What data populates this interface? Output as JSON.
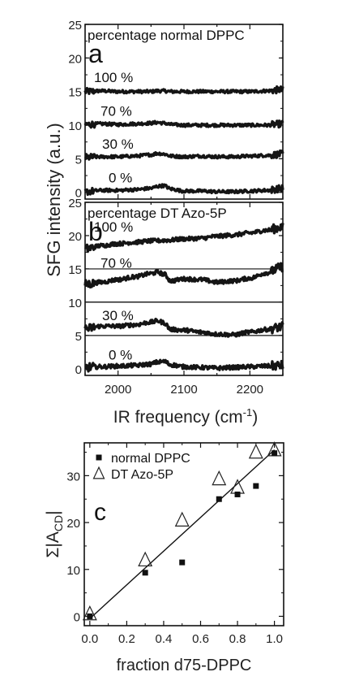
{
  "chart_data": [
    {
      "type": "line",
      "panel_label": "a",
      "legend_title": "percentage normal DPPC",
      "xlim": [
        1950,
        2250
      ],
      "ylim": [
        -1,
        25
      ],
      "yticks": [
        0,
        5,
        10,
        15,
        20,
        25
      ],
      "yticklabels": [
        "0",
        "5",
        "10",
        "15",
        "20",
        "25"
      ],
      "series": [
        {
          "name": "100 %",
          "baseline": 15,
          "x": [
            1950,
            1975,
            2000,
            2025,
            2050,
            2060,
            2070,
            2080,
            2100,
            2125,
            2150,
            2175,
            2200,
            2225,
            2250
          ],
          "y": [
            15,
            15.1,
            15,
            15,
            15,
            15.1,
            15.1,
            15,
            15,
            15,
            15,
            15,
            15,
            15.1,
            15.3
          ]
        },
        {
          "name": "70 %",
          "baseline": 10,
          "x": [
            1950,
            1975,
            2000,
            2025,
            2050,
            2060,
            2070,
            2080,
            2100,
            2125,
            2150,
            2175,
            2200,
            2225,
            2250
          ],
          "y": [
            10.1,
            10.2,
            10.1,
            10.2,
            10.3,
            10.4,
            10.3,
            10.1,
            10,
            10,
            10,
            10,
            10,
            10,
            10.2
          ]
        },
        {
          "name": "30 %",
          "baseline": 5,
          "x": [
            1950,
            1975,
            2000,
            2025,
            2050,
            2060,
            2070,
            2080,
            2100,
            2125,
            2150,
            2175,
            2200,
            2225,
            2250
          ],
          "y": [
            5.2,
            5.3,
            5.3,
            5.4,
            5.6,
            5.8,
            5.7,
            5.4,
            5.3,
            5.4,
            5.3,
            5.3,
            5.4,
            5.5,
            5.7
          ]
        },
        {
          "name": "0 %",
          "baseline": 0,
          "x": [
            1950,
            1975,
            2000,
            2025,
            2050,
            2060,
            2070,
            2080,
            2100,
            2125,
            2150,
            2175,
            2200,
            2225,
            2250
          ],
          "y": [
            0.1,
            0.3,
            0.3,
            0.4,
            0.6,
            0.9,
            1.0,
            0.5,
            0.2,
            0.2,
            0.1,
            0.1,
            0.2,
            0.3,
            0.6
          ]
        }
      ]
    },
    {
      "type": "line",
      "panel_label": "b",
      "legend_title": "percentage DT Azo-5P",
      "xlim": [
        1950,
        2250
      ],
      "ylim": [
        -1,
        25
      ],
      "xticks": [
        2000,
        2100,
        2200
      ],
      "xticklabels": [
        "2000",
        "2100",
        "2200"
      ],
      "yticks": [
        0,
        5,
        10,
        15,
        20,
        25
      ],
      "yticklabels": [
        "0",
        "5",
        "10",
        "15",
        "20",
        "25"
      ],
      "xlabel": "IR frequency (cm",
      "xlabel_sup": "-1",
      "xlabel_end": ")",
      "shared_ylabel": "SFG intensity (a.u.)",
      "series": [
        {
          "name": "100 %",
          "baseline": 15,
          "x": [
            1950,
            1975,
            2000,
            2025,
            2050,
            2075,
            2100,
            2125,
            2150,
            2175,
            2200,
            2225,
            2250
          ],
          "y": [
            18.0,
            18.5,
            18.8,
            19.0,
            19.2,
            19.3,
            19.5,
            19.6,
            19.9,
            20.1,
            20.4,
            20.8,
            21.3
          ]
        },
        {
          "name": "70 %",
          "baseline": 10,
          "x": [
            1950,
            1975,
            2000,
            2025,
            2050,
            2060,
            2070,
            2080,
            2100,
            2125,
            2150,
            2175,
            2200,
            2225,
            2250
          ],
          "y": [
            12.7,
            13.0,
            13.4,
            13.8,
            14.3,
            14.5,
            14.2,
            13.2,
            13.5,
            13.4,
            13.0,
            13.2,
            13.6,
            14.4,
            15.3
          ]
        },
        {
          "name": "30 %",
          "baseline": 5,
          "x": [
            1950,
            1975,
            2000,
            2025,
            2050,
            2060,
            2070,
            2080,
            2100,
            2125,
            2150,
            2175,
            2200,
            2225,
            2250
          ],
          "y": [
            6.0,
            6.4,
            6.4,
            6.6,
            7.0,
            7.2,
            6.9,
            5.9,
            5.8,
            5.5,
            5.2,
            5.1,
            5.5,
            5.9,
            6.3
          ]
        },
        {
          "name": "0 %",
          "baseline": 0,
          "x": [
            1950,
            1975,
            2000,
            2025,
            2050,
            2060,
            2070,
            2080,
            2100,
            2125,
            2150,
            2175,
            2200,
            2225,
            2250
          ],
          "y": [
            0.2,
            0.3,
            0.4,
            0.5,
            0.7,
            1.0,
            1.1,
            0.6,
            0.3,
            0.2,
            0.1,
            0.2,
            0.3,
            0.4,
            0.5
          ]
        }
      ]
    },
    {
      "type": "scatter",
      "panel_label": "c",
      "xlabel": "fraction d75-DPPC",
      "ylabel": "Σ|A",
      "ylabel_sub": "CD",
      "ylabel_end": "|",
      "xlim": [
        -0.03,
        1.05
      ],
      "ylim": [
        -2,
        37
      ],
      "xticks": [
        0.0,
        0.2,
        0.4,
        0.6,
        0.8,
        1.0
      ],
      "xticklabels": [
        "0.0",
        "0.2",
        "0.4",
        "0.6",
        "0.8",
        "1.0"
      ],
      "yticks": [
        0,
        10,
        20,
        30
      ],
      "yticklabels": [
        "0",
        "10",
        "20",
        "30"
      ],
      "legend_position": "top-left",
      "series": [
        {
          "name": "normal DPPC",
          "marker": "filled-square",
          "x": [
            0.0,
            0.3,
            0.5,
            0.7,
            0.8,
            0.9,
            1.0
          ],
          "y": [
            0.0,
            9.3,
            11.5,
            25.0,
            26.0,
            27.8,
            34.8
          ]
        },
        {
          "name": "DT Azo-5P",
          "marker": "open-triangle",
          "x": [
            0.0,
            0.3,
            0.5,
            0.7,
            0.8,
            0.9,
            1.0
          ],
          "y": [
            0.5,
            12.0,
            20.5,
            29.3,
            27.5,
            35.0,
            35.5
          ]
        }
      ],
      "fit_line": {
        "x": [
          0.0,
          1.0
        ],
        "y": [
          -0.5,
          35.5
        ]
      }
    }
  ]
}
